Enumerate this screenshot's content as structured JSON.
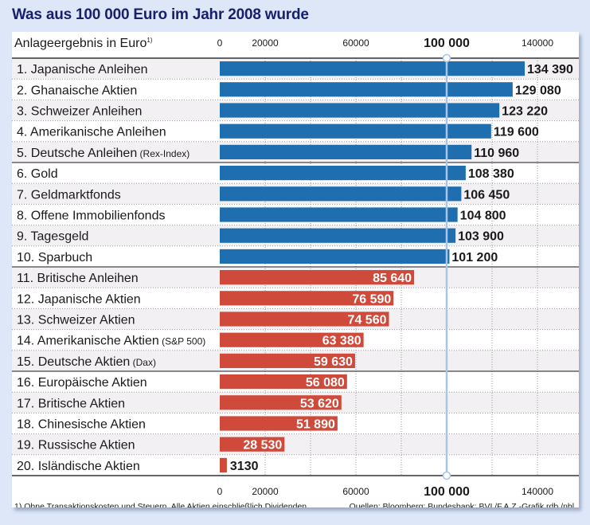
{
  "title": "Was aus 100 000 Euro im Jahr 2008 wurde",
  "chart_data": {
    "type": "bar",
    "orientation": "horizontal",
    "title": "Was aus 100 000 Euro im Jahr 2008 wurde",
    "subtitle": "Anlageergebnis in Euro",
    "subtitle_footnote_mark": "1)",
    "xlim": [
      0,
      150000
    ],
    "reference_value": 100000,
    "reference_label": "100 000",
    "ticks": [
      {
        "value": 0,
        "label": "0"
      },
      {
        "value": 20000,
        "label": "20000"
      },
      {
        "value": 60000,
        "label": "60000"
      },
      {
        "value": 100000,
        "label": "100 000",
        "bold": true
      },
      {
        "value": 140000,
        "label": "140000"
      }
    ],
    "grid": true,
    "colors": {
      "above": "#1f6fb0",
      "below": "#cf4a3a",
      "reference_line": "#a8c4e6",
      "title": "#17206a"
    },
    "categories": [
      {
        "rank": "1.",
        "name": "Japanische Anleihen",
        "note": "",
        "value": 134390,
        "label": "134 390"
      },
      {
        "rank": "2.",
        "name": "Ghanaische Aktien",
        "note": "",
        "value": 129080,
        "label": "129 080"
      },
      {
        "rank": "3.",
        "name": "Schweizer Anleihen",
        "note": "",
        "value": 123220,
        "label": "123 220"
      },
      {
        "rank": "4.",
        "name": "Amerikanische Anleihen",
        "note": "",
        "value": 119600,
        "label": "119 600"
      },
      {
        "rank": "5.",
        "name": "Deutsche Anleihen",
        "note": "(Rex-Index)",
        "value": 110960,
        "label": "110 960"
      },
      {
        "rank": "6.",
        "name": "Gold",
        "note": "",
        "value": 108380,
        "label": "108 380"
      },
      {
        "rank": "7.",
        "name": "Geldmarktfonds",
        "note": "",
        "value": 106450,
        "label": "106 450"
      },
      {
        "rank": "8.",
        "name": "Offene Immobilienfonds",
        "note": "",
        "value": 104800,
        "label": "104 800"
      },
      {
        "rank": "9.",
        "name": "Tagesgeld",
        "note": "",
        "value": 103900,
        "label": "103 900"
      },
      {
        "rank": "10.",
        "name": "Sparbuch",
        "note": "",
        "value": 101200,
        "label": "101 200"
      },
      {
        "rank": "11.",
        "name": "Britische Anleihen",
        "note": "",
        "value": 85640,
        "label": "85 640"
      },
      {
        "rank": "12.",
        "name": "Japanische Aktien",
        "note": "",
        "value": 76590,
        "label": "76 590"
      },
      {
        "rank": "13.",
        "name": "Schweizer Aktien",
        "note": "",
        "value": 74560,
        "label": "74 560"
      },
      {
        "rank": "14.",
        "name": "Amerikanische Aktien",
        "note": "(S&P 500)",
        "value": 63380,
        "label": "63 380"
      },
      {
        "rank": "15.",
        "name": "Deutsche Aktien",
        "note": "(Dax)",
        "value": 59630,
        "label": "59 630"
      },
      {
        "rank": "16.",
        "name": "Europäische Aktien",
        "note": "",
        "value": 56080,
        "label": "56 080"
      },
      {
        "rank": "17.",
        "name": "Britische Aktien",
        "note": "",
        "value": 53620,
        "label": "53 620"
      },
      {
        "rank": "18.",
        "name": "Chinesische Aktien",
        "note": "",
        "value": 51890,
        "label": "51 890"
      },
      {
        "rank": "19.",
        "name": "Russische Aktien",
        "note": "",
        "value": 28530,
        "label": "28 530"
      },
      {
        "rank": "20.",
        "name": "Isländische Aktien",
        "note": "",
        "value": 3130,
        "label": "3130"
      }
    ],
    "group_breaks_after": [
      5,
      10,
      15
    ],
    "footnote": "1) Ohne Transaktionskosten und Steuern. Alle Aktien einschließlich Dividenden.",
    "source": "Quellen: Bloomberg; Bundesbank; BVI /F.A.Z.-Grafik rdb./nbl."
  }
}
